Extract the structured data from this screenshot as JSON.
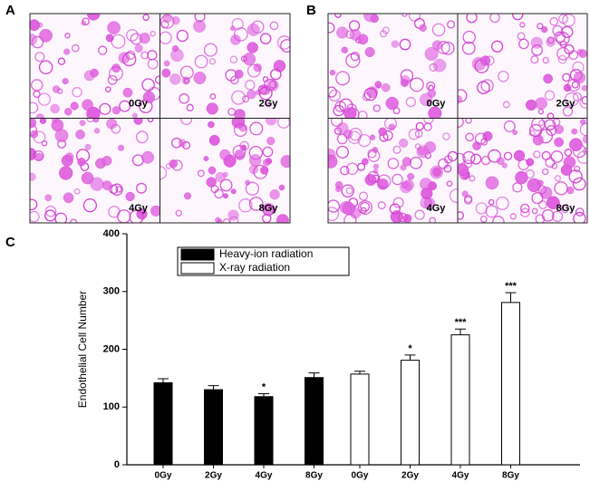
{
  "panels": [
    {
      "letter": "A",
      "labels": [
        "0Gy",
        "2Gy",
        "4Gy",
        "8Gy"
      ]
    },
    {
      "letter": "B",
      "labels": [
        "0Gy",
        "2Gy",
        "4Gy",
        "8Gy"
      ]
    }
  ],
  "chart_data": {
    "type": "bar",
    "panel_letter": "C",
    "y_label": "Endothelial Cell Number",
    "categories": [
      "0Gy",
      "2Gy",
      "4Gy",
      "8Gy"
    ],
    "series": [
      {
        "name": "Heavy-ion radiation",
        "color": "#000000",
        "values": [
          142,
          130,
          118,
          151
        ],
        "errors": [
          7,
          7,
          5,
          8
        ],
        "annotations": [
          null,
          null,
          "*",
          null
        ]
      },
      {
        "name": "X-ray radiation",
        "color": "#ffffff",
        "values": [
          157,
          181,
          225,
          281
        ],
        "errors": [
          5,
          9,
          10,
          17
        ],
        "annotations": [
          null,
          "*",
          "***",
          "***"
        ]
      }
    ],
    "ylim": [
      0,
      400
    ],
    "yticks": [
      0,
      100,
      200,
      300,
      400
    ]
  }
}
